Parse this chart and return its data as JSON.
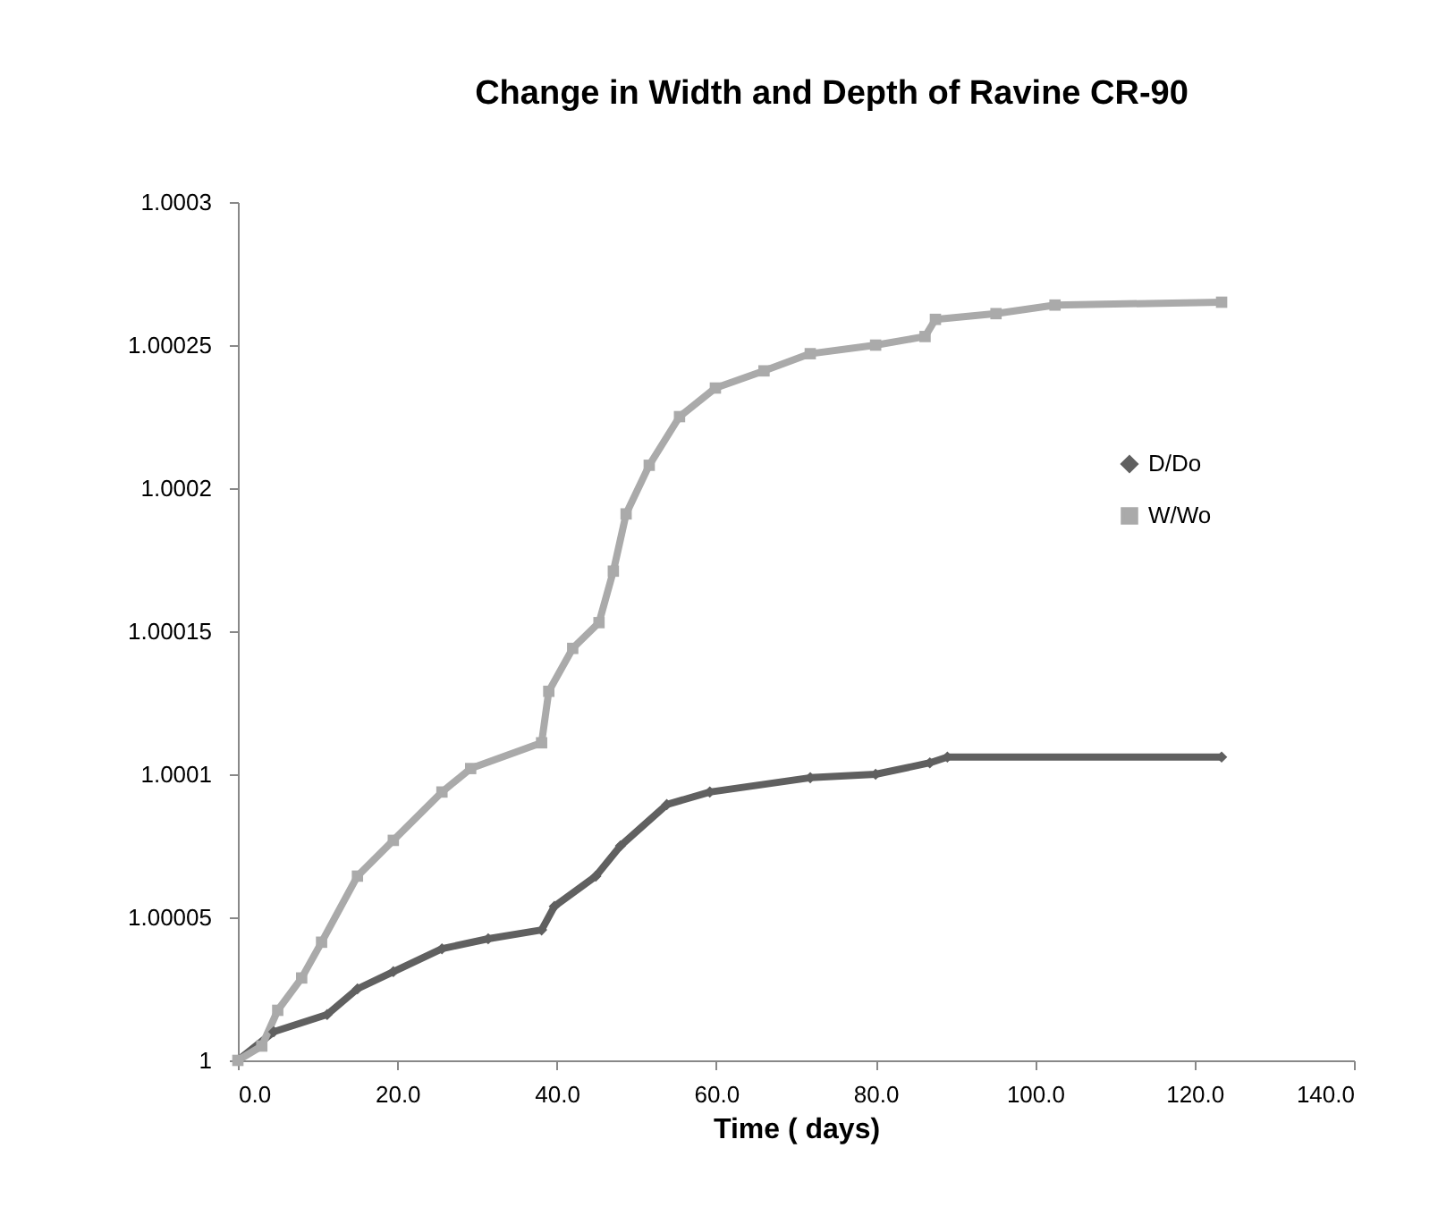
{
  "chart_data": {
    "type": "line",
    "title": "Change in Width and  Depth of Ravine CR-90",
    "xlabel": "Time ( days)",
    "xlim": [
      0,
      140
    ],
    "xticks": [
      {
        "value": 0,
        "label": "0.0"
      },
      {
        "value": 20,
        "label": "20.0"
      },
      {
        "value": 40,
        "label": "40.0"
      },
      {
        "value": 60,
        "label": "60.0"
      },
      {
        "value": 80,
        "label": "80.0"
      },
      {
        "value": 100,
        "label": "100.0"
      },
      {
        "value": 120,
        "label": "120.0"
      },
      {
        "value": 140,
        "label": "140.0"
      }
    ],
    "ylim": [
      1,
      1.0003
    ],
    "yticks": [
      1,
      1.00005,
      1.0001,
      1.00015,
      1.0002,
      1.00025,
      1.0003
    ],
    "grid": false,
    "legend": "right",
    "series": [
      {
        "name": "D/Do",
        "color": "#606060",
        "marker": "diamond",
        "x": [
          0,
          4.5,
          11.2,
          15,
          19.5,
          25.6,
          31.4,
          38.1,
          39.7,
          44.9,
          48,
          53.8,
          59.2,
          71.8,
          80,
          86.8,
          89,
          123.4
        ],
        "values": [
          1,
          1.00001,
          1.000016,
          1.000025,
          1.000031,
          1.000039,
          1.0000425,
          1.0000456,
          1.0000538,
          1.0000644,
          1.000075,
          1.0000894,
          1.0000938,
          1.0000988,
          1.0001,
          1.000104,
          1.000106,
          1.000106
        ]
      },
      {
        "name": "W/Wo",
        "color": "#aaaaaa",
        "marker": "square",
        "x": [
          0,
          3,
          5,
          8,
          10.5,
          15,
          19.5,
          25.6,
          29.2,
          38.1,
          39,
          42,
          45.3,
          47.1,
          48.7,
          51.6,
          55.4,
          59.9,
          66,
          71.8,
          80,
          86.2,
          87.5,
          95.1,
          102.5,
          123.4
        ],
        "values": [
          1,
          1.000005,
          1.0000175,
          1.0000288,
          1.0000413,
          1.0000644,
          1.0000769,
          1.0000938,
          1.000102,
          1.000111,
          1.000129,
          1.000144,
          1.000153,
          1.000171,
          1.000191,
          1.000208,
          1.000225,
          1.000235,
          1.000241,
          1.000247,
          1.00025,
          1.000253,
          1.000259,
          1.000261,
          1.000264,
          1.000265
        ]
      }
    ]
  }
}
